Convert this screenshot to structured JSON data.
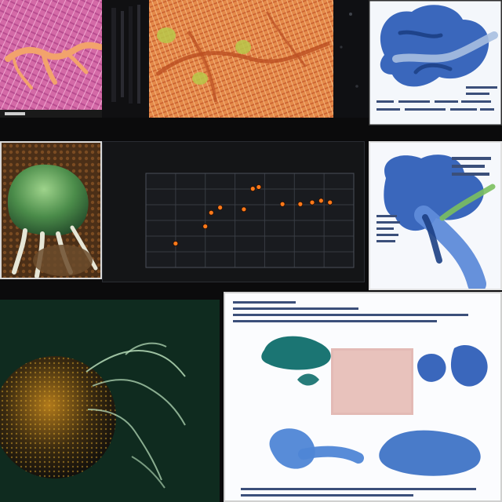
{
  "panels": {
    "top_left": {
      "note": ""
    },
    "top_middle": {
      "note": ""
    },
    "top_right": {
      "note": ""
    },
    "mid_left": {
      "note": ""
    },
    "mid_middle": {
      "chart": true
    },
    "mid_right": {
      "note": ""
    },
    "bottom_left": {
      "note": ""
    },
    "bottom_right": {
      "note": ""
    }
  },
  "chart_data": {
    "type": "scatter",
    "title": "",
    "xlabel": "",
    "ylabel": "",
    "grid": true,
    "x": [
      1,
      2,
      2.2,
      2.5,
      3.3,
      3.6,
      3.8,
      4.6,
      5.2,
      5.6,
      5.9,
      6.2
    ],
    "y": [
      1.4,
      2.4,
      3.2,
      3.5,
      3.4,
      4.6,
      4.7,
      3.7,
      3.7,
      3.8,
      3.9,
      3.8
    ],
    "xlim": [
      0,
      7
    ],
    "ylim": [
      0,
      5.5
    ],
    "point_color": "#ff7a1a"
  },
  "colors": {
    "background": "#0b0b0c",
    "chart_bg": "#141517",
    "grid": "#3b3f46",
    "accent_blue": "#2f5fb8",
    "accent_green": "#4b8c4a"
  }
}
